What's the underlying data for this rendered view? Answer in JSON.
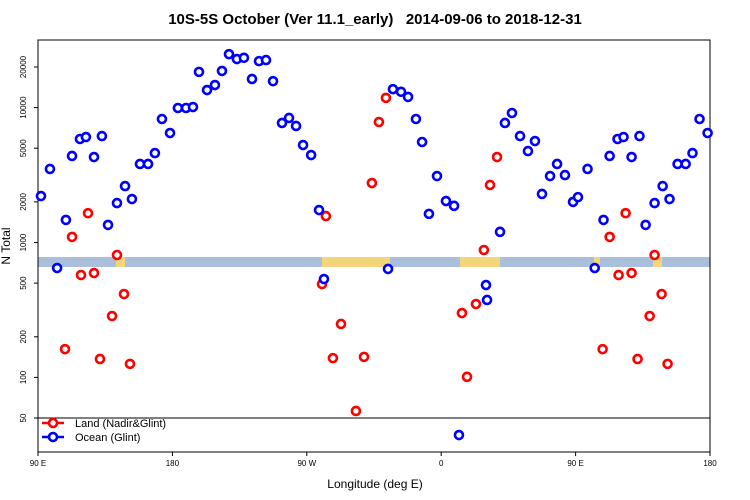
{
  "chart_data": {
    "type": "scatter",
    "title": "10S-5S October (Ver 11.1_early)   2014-09-06 to 2018-12-31",
    "x_label": "Longitude (deg E)",
    "y_label": "N Total",
    "log_y": true,
    "legend": "bottom-left",
    "xlim": [
      90,
      540
    ],
    "ylim": [
      28,
      31700
    ],
    "xticks": [
      {
        "value": 90,
        "label": "90 E"
      },
      180,
      {
        "value": 270,
        "label": "90 W"
      },
      {
        "value": 360,
        "label": "0"
      },
      {
        "value": 450,
        "label": "90 E"
      },
      {
        "value": 540,
        "label": "180"
      }
    ],
    "yticks": [
      50,
      100,
      200,
      500,
      1000,
      2000,
      5000,
      10000,
      20000
    ],
    "series": [
      {
        "name": "Land (Nadir&Glint)",
        "color": "#ff0000",
        "x": [
          108.1,
          112.8,
          118.8,
          123.5,
          127.5,
          131.5,
          139.6,
          142.9,
          147.6,
          151.6,
          280.2,
          282.8,
          287.5,
          292.9,
          302.9,
          308.3,
          313.6,
          318.3,
          323.0,
          373.9,
          377.3,
          383.3,
          388.6,
          392.7,
          397.4,
          468.1,
          472.8,
          478.8,
          483.5,
          487.5,
          491.5,
          499.6,
          502.9,
          507.6,
          511.6
        ],
        "values": [
          162,
          1100,
          574,
          1650,
          594,
          137,
          285,
          808,
          415,
          126,
          492,
          1570,
          139,
          249,
          56.4,
          142,
          2760,
          7820,
          11800,
          300,
          101,
          350,
          880,
          2670,
          4300,
          162,
          1100,
          574,
          1650,
          594,
          137,
          285,
          808,
          415,
          126
        ]
      },
      {
        "name": "Ocean (Glint)",
        "color": "#0000ff",
        "x": [
          92.0,
          98.0,
          102.8,
          108.7,
          112.8,
          118.1,
          122.1,
          127.5,
          132.8,
          136.9,
          142.9,
          148.3,
          152.9,
          158.3,
          163.7,
          168.3,
          173.0,
          178.4,
          183.7,
          189.1,
          193.8,
          197.8,
          203.2,
          208.5,
          213.2,
          217.9,
          223.2,
          227.9,
          233.3,
          238.0,
          242.7,
          247.4,
          253.4,
          258.1,
          262.8,
          267.5,
          272.9,
          278.2,
          281.5,
          324.4,
          327.7,
          333.1,
          337.8,
          343.1,
          347.2,
          351.8,
          357.2,
          363.2,
          368.6,
          371.9,
          390.0,
          390.7,
          399.4,
          402.7,
          407.4,
          412.8,
          418.1,
          422.8,
          427.5,
          432.9,
          437.6,
          442.9,
          448.3,
          451.6,
          458.0,
          462.8,
          468.7,
          472.8,
          478.1,
          482.1,
          487.5,
          492.8,
          496.9,
          502.9,
          508.3,
          512.9,
          518.3,
          523.7,
          528.3,
          533.0,
          538.4
        ],
        "values": [
          2210,
          3510,
          647,
          1470,
          4380,
          5850,
          6050,
          4300,
          6150,
          1350,
          1960,
          2620,
          2100,
          3820,
          3820,
          4600,
          8230,
          6480,
          9930,
          9930,
          10100,
          18400,
          13500,
          14700,
          18700,
          24900,
          22900,
          23400,
          16300,
          22100,
          22500,
          15700,
          7690,
          8380,
          7310,
          5280,
          4450,
          1740,
          536,
          637,
          13700,
          13100,
          12000,
          8230,
          5560,
          1630,
          3110,
          2030,
          1870,
          37.4,
          484,
          375,
          1200,
          7690,
          9120,
          6150,
          4760,
          5650,
          2290,
          3110,
          3820,
          3160,
          2000,
          2170,
          3510,
          647,
          1470,
          4380,
          5850,
          6050,
          4300,
          6150,
          1350,
          1960,
          2620,
          2100,
          3820,
          3820,
          4600,
          8230,
          6480
        ]
      }
    ]
  }
}
